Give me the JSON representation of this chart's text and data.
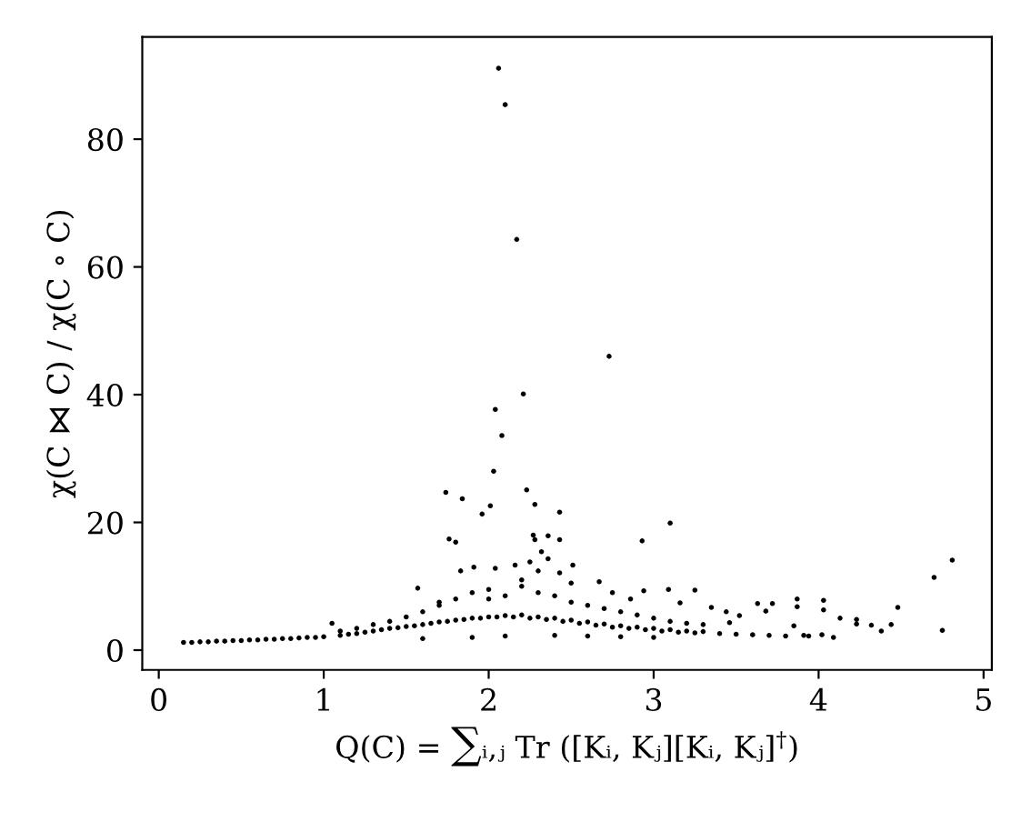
{
  "chart_data": {
    "type": "scatter",
    "xlabel": "Q(C) = ∑ᵢ,ⱼ Tr ([Kᵢ, Kⱼ][Kᵢ, Kⱼ]$^{†}$)",
    "ylabel": "χ(C ⋈ C) / χ(C ∘ C)",
    "xlim": [
      -0.1,
      5.05
    ],
    "ylim": [
      -3.1,
      96
    ],
    "xticks": [
      0,
      1,
      2,
      3,
      4,
      5
    ],
    "yticks": [
      0,
      20,
      40,
      60,
      80
    ],
    "grid": false,
    "marker": "circle",
    "series": [
      {
        "color": "#000000",
        "x": [
          2.06,
          2.1,
          2.17,
          2.73,
          2.21,
          2.04,
          2.08,
          2.03,
          1.74,
          1.84,
          2.23,
          2.01,
          1.96,
          2.28,
          2.43,
          3.1,
          1.76,
          1.8,
          2.27,
          2.28,
          2.36,
          2.43,
          2.93,
          2.32,
          2.25,
          2.36,
          2.51,
          2.16,
          1.91,
          1.83,
          2.04,
          2.3,
          2.43,
          1.57,
          2.67,
          3.09,
          2.94,
          3.25,
          2.86,
          3.16,
          2.75,
          4.81,
          4.7,
          4.75,
          4.48,
          4.44,
          4.38,
          4.32,
          4.23,
          4.23,
          4.13,
          4.03,
          4.03,
          3.87,
          3.87,
          4.09,
          4.02,
          3.72,
          3.63,
          3.68,
          3.85,
          3.94,
          3.91,
          3.35,
          3.44,
          3.52,
          3.46,
          0.15,
          0.2,
          0.25,
          0.3,
          0.35,
          0.4,
          0.45,
          0.5,
          0.55,
          0.6,
          0.65,
          0.7,
          0.75,
          0.8,
          0.85,
          0.9,
          0.95,
          1.0,
          1.05,
          1.1,
          1.1,
          1.15,
          1.2,
          1.2,
          1.25,
          1.3,
          1.3,
          1.35,
          1.4,
          1.4,
          1.45,
          1.5,
          1.5,
          1.55,
          1.6,
          1.6,
          1.65,
          1.7,
          1.7,
          1.75,
          1.8,
          1.8,
          1.85,
          1.9,
          1.9,
          1.95,
          2.0,
          2.0,
          2.05,
          2.1,
          2.1,
          2.15,
          2.2,
          2.2,
          2.25,
          2.3,
          2.3,
          2.35,
          2.4,
          2.4,
          2.45,
          2.5,
          2.5,
          2.55,
          2.6,
          2.6,
          2.65,
          2.7,
          2.7,
          2.75,
          2.8,
          2.8,
          2.85,
          2.9,
          2.9,
          2.95,
          3.0,
          3.0,
          3.05,
          3.1,
          3.1,
          3.15,
          3.2,
          3.2,
          3.25,
          3.3,
          3.3,
          3.4,
          3.5,
          3.6,
          3.7,
          3.8,
          1.6,
          1.9,
          2.1,
          2.4,
          2.6,
          2.8,
          3.0,
          1.7,
          2.0,
          2.2,
          2.5
        ],
        "values": [
          91.1,
          85.4,
          64.3,
          46.0,
          40.1,
          37.7,
          33.6,
          28.0,
          24.7,
          23.7,
          25.1,
          22.6,
          21.3,
          22.8,
          21.6,
          19.9,
          17.4,
          16.9,
          18.0,
          17.3,
          17.9,
          17.3,
          17.1,
          15.4,
          13.8,
          14.3,
          13.3,
          13.3,
          13.0,
          12.4,
          12.8,
          12.4,
          12.1,
          9.7,
          10.7,
          9.5,
          9.3,
          9.4,
          8.0,
          7.4,
          9.0,
          14.1,
          11.4,
          3.1,
          6.7,
          4.0,
          3.0,
          3.9,
          4.8,
          4.1,
          5.0,
          7.8,
          6.3,
          8.0,
          6.8,
          2.0,
          2.4,
          7.3,
          7.3,
          6.1,
          3.8,
          2.2,
          2.3,
          6.7,
          6.0,
          5.4,
          4.3,
          1.2,
          1.2,
          1.3,
          1.3,
          1.4,
          1.4,
          1.5,
          1.5,
          1.6,
          1.6,
          1.7,
          1.7,
          1.8,
          1.8,
          1.9,
          2.0,
          2.0,
          2.1,
          4.2,
          2.3,
          3.0,
          2.5,
          2.6,
          3.4,
          2.8,
          3.0,
          4.0,
          3.2,
          3.4,
          4.5,
          3.5,
          3.7,
          5.2,
          3.8,
          4.0,
          6.0,
          4.2,
          4.4,
          7.0,
          4.5,
          4.7,
          8.0,
          4.8,
          5.0,
          9.0,
          5.0,
          5.2,
          9.5,
          5.2,
          5.4,
          8.5,
          5.2,
          5.5,
          10.0,
          5.0,
          5.2,
          9.0,
          4.8,
          5.0,
          8.5,
          4.5,
          4.7,
          7.5,
          4.2,
          4.4,
          7.0,
          3.9,
          4.1,
          6.5,
          3.6,
          3.8,
          6.0,
          3.4,
          3.6,
          5.5,
          3.2,
          3.4,
          5.0,
          3.0,
          3.2,
          4.5,
          2.8,
          3.0,
          4.2,
          2.7,
          2.9,
          4.0,
          2.6,
          2.5,
          2.4,
          2.3,
          2.2,
          1.8,
          2.0,
          2.2,
          2.3,
          2.2,
          2.1,
          2.0,
          7.5,
          8.0,
          11.0,
          10.5
        ]
      }
    ]
  }
}
